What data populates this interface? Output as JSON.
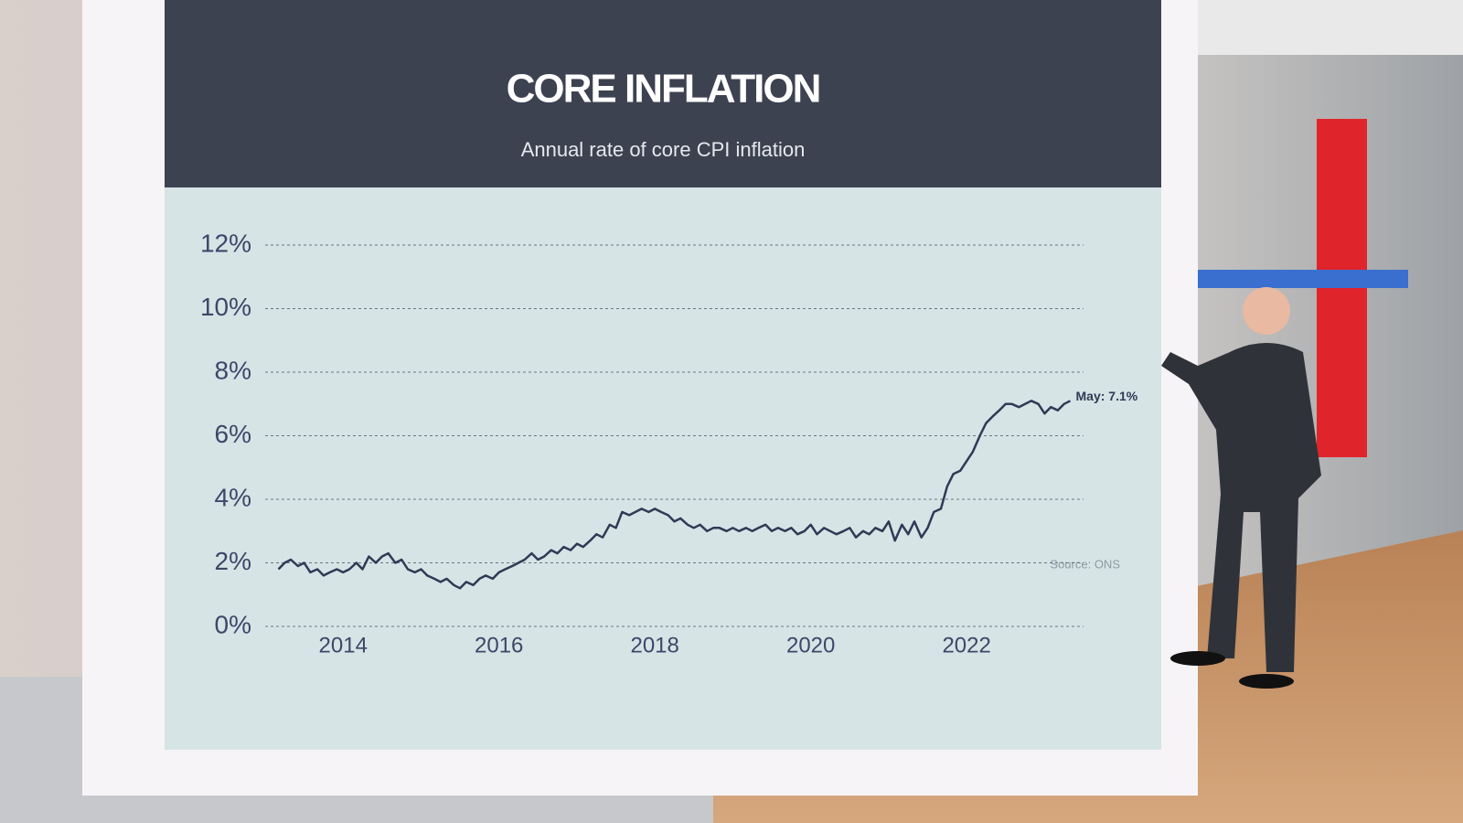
{
  "chart_data": {
    "type": "line",
    "title": "CORE INFLATION",
    "subtitle": "Annual rate of core CPI inflation",
    "source": "Source: ONS",
    "end_label": "May: 7.1%",
    "color": "#2f3a55",
    "grid": true,
    "x": [
      2013.17,
      2013.25,
      2013.33,
      2013.42,
      2013.5,
      2013.58,
      2013.67,
      2013.75,
      2013.83,
      2013.92,
      2014.0,
      2014.08,
      2014.17,
      2014.25,
      2014.33,
      2014.42,
      2014.5,
      2014.58,
      2014.67,
      2014.75,
      2014.83,
      2014.92,
      2015.0,
      2015.08,
      2015.17,
      2015.25,
      2015.33,
      2015.42,
      2015.5,
      2015.58,
      2015.67,
      2015.75,
      2015.83,
      2015.92,
      2016.0,
      2016.08,
      2016.17,
      2016.25,
      2016.33,
      2016.42,
      2016.5,
      2016.58,
      2016.67,
      2016.75,
      2016.83,
      2016.92,
      2017.0,
      2017.08,
      2017.17,
      2017.25,
      2017.33,
      2017.42,
      2017.5,
      2017.58,
      2017.67,
      2017.75,
      2017.83,
      2017.92,
      2018.0,
      2018.08,
      2018.17,
      2018.25,
      2018.33,
      2018.42,
      2018.5,
      2018.58,
      2018.67,
      2018.75,
      2018.83,
      2018.92,
      2019.0,
      2019.08,
      2019.17,
      2019.25,
      2019.33,
      2019.42,
      2019.5,
      2019.58,
      2019.67,
      2019.75,
      2019.83,
      2019.92,
      2020.0,
      2020.08,
      2020.17,
      2020.25,
      2020.33,
      2020.42,
      2020.5,
      2020.58,
      2020.67,
      2020.75,
      2020.83,
      2020.92,
      2021.0,
      2021.08,
      2021.17,
      2021.25,
      2021.33,
      2021.42,
      2021.5,
      2021.58,
      2021.67,
      2021.75,
      2021.83,
      2021.92,
      2022.0,
      2022.08,
      2022.17,
      2022.25,
      2022.33,
      2022.42,
      2022.5,
      2022.58,
      2022.67,
      2022.75,
      2022.83,
      2022.92,
      2023.0,
      2023.08,
      2023.17,
      2023.25,
      2023.33
    ],
    "values": [
      1.8,
      2.0,
      2.1,
      1.9,
      2.0,
      1.7,
      1.8,
      1.6,
      1.7,
      1.8,
      1.7,
      1.8,
      2.0,
      1.8,
      2.2,
      2.0,
      2.2,
      2.3,
      2.0,
      2.1,
      1.8,
      1.7,
      1.8,
      1.6,
      1.5,
      1.4,
      1.5,
      1.3,
      1.2,
      1.4,
      1.3,
      1.5,
      1.6,
      1.5,
      1.7,
      1.8,
      1.9,
      2.0,
      2.1,
      2.3,
      2.1,
      2.2,
      2.4,
      2.3,
      2.5,
      2.4,
      2.6,
      2.5,
      2.7,
      2.9,
      2.8,
      3.2,
      3.1,
      3.6,
      3.5,
      3.6,
      3.7,
      3.6,
      3.7,
      3.6,
      3.5,
      3.3,
      3.4,
      3.2,
      3.1,
      3.2,
      3.0,
      3.1,
      3.1,
      3.0,
      3.1,
      3.0,
      3.1,
      3.0,
      3.1,
      3.2,
      3.0,
      3.1,
      3.0,
      3.1,
      2.9,
      3.0,
      3.2,
      2.9,
      3.1,
      3.0,
      2.9,
      3.0,
      3.1,
      2.8,
      3.0,
      2.9,
      3.1,
      3.0,
      3.3,
      2.7,
      3.2,
      2.9,
      3.3,
      2.8,
      3.1,
      3.6,
      3.7,
      4.4,
      4.8,
      4.9,
      5.2,
      5.5,
      6.0,
      6.4,
      6.6,
      6.8,
      7.0,
      7.0,
      6.9,
      7.0,
      7.1,
      7.0,
      6.7,
      6.9,
      6.8,
      7.0,
      7.1
    ],
    "xlim": [
      2013,
      2023.5
    ],
    "xticks": [
      2014,
      2016,
      2018,
      2020,
      2022
    ],
    "ylim": [
      0,
      12
    ],
    "yticks": [
      {
        "value": 0,
        "label": "0%"
      },
      {
        "value": 2,
        "label": "2%"
      },
      {
        "value": 4,
        "label": "4%"
      },
      {
        "value": 6,
        "label": "6%"
      },
      {
        "value": 8,
        "label": "8%"
      },
      {
        "value": 10,
        "label": "10%"
      },
      {
        "value": 12,
        "label": "12%"
      }
    ]
  }
}
